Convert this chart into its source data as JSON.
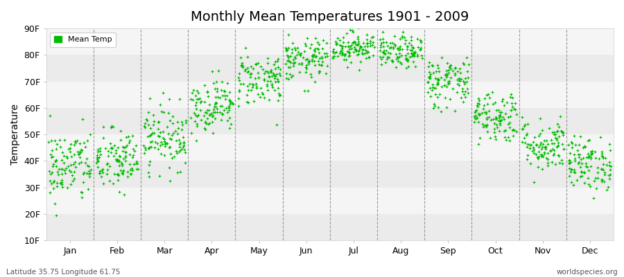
{
  "title": "Monthly Mean Temperatures 1901 - 2009",
  "ylabel": "Temperature",
  "dot_color": "#00BB00",
  "background_color": "#FFFFFF",
  "legend_label": "Mean Temp",
  "subtitle": "Latitude 35.75 Longitude 61.75",
  "watermark": "worldspecies.org",
  "ytick_labels": [
    "10F",
    "20F",
    "30F",
    "40F",
    "50F",
    "60F",
    "70F",
    "80F",
    "90F"
  ],
  "ytick_values": [
    10,
    20,
    30,
    40,
    50,
    60,
    70,
    80,
    90
  ],
  "months": [
    "Jan",
    "Feb",
    "Mar",
    "Apr",
    "May",
    "Jun",
    "Jul",
    "Aug",
    "Sep",
    "Oct",
    "Nov",
    "Dec"
  ],
  "mean_temps_F": [
    38,
    40,
    49,
    61,
    71,
    78,
    83,
    81,
    70,
    57,
    46,
    39
  ],
  "std_temps_F": [
    7,
    6,
    6,
    5,
    5,
    4,
    3,
    3,
    5,
    5,
    5,
    5
  ],
  "n_years": 109,
  "seed": 42,
  "band_colors": [
    "#EBEBEB",
    "#F5F5F5"
  ],
  "dashed_line_color": "#999999",
  "title_fontsize": 14,
  "label_fontsize": 9,
  "ylabel_fontsize": 10
}
